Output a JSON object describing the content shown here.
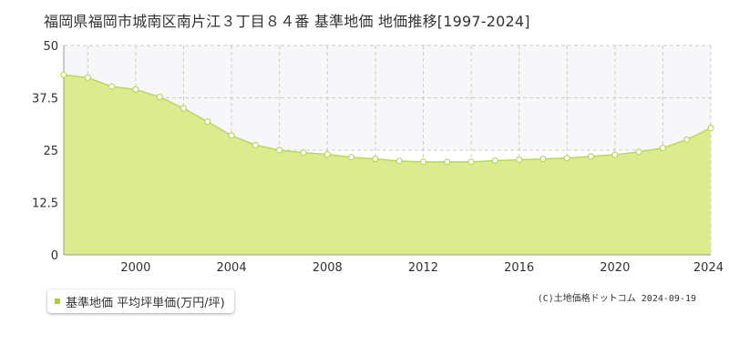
{
  "header": {
    "title": "福岡県福岡市城南区南片江３丁目８４番 基準地価 地価推移[1997-2024]"
  },
  "legend": {
    "label": "基準地価 平均坪単価(万円/坪)"
  },
  "footer": {
    "copyright": "(C)土地価格ドットコム 2024-09-19"
  },
  "colors": {
    "area_fill": "#dbeb8e",
    "line": "#b8d85a",
    "upper_band": "#f7f7f9",
    "marker_fill": "#ffffff",
    "grid": "#cccccc",
    "axis": "#999999",
    "legend_swatch": "#a8cf3a"
  },
  "chart_data": {
    "type": "area",
    "title": "福岡県福岡市城南区南片江３丁目８４番 基準地価 地価推移[1997-2024]",
    "xlabel": "",
    "ylabel": "",
    "xlim": [
      1997,
      2024
    ],
    "ylim": [
      0,
      50
    ],
    "yticks": [
      "0",
      "12.5",
      "25",
      "37.5",
      "50"
    ],
    "xticks": [
      "2000",
      "2004",
      "2008",
      "2012",
      "2016",
      "2020",
      "2024"
    ],
    "grid": true,
    "legend_position": "bottom-left",
    "series": [
      {
        "name": "基準地価 平均坪単価(万円/坪)",
        "x": [
          1997,
          1998,
          1999,
          2000,
          2001,
          2002,
          2003,
          2004,
          2005,
          2006,
          2007,
          2008,
          2009,
          2010,
          2011,
          2012,
          2013,
          2014,
          2015,
          2016,
          2017,
          2018,
          2019,
          2020,
          2021,
          2022,
          2023,
          2024
        ],
        "values": [
          43.0,
          42.3,
          40.2,
          39.5,
          37.7,
          35.0,
          31.8,
          28.5,
          26.2,
          25.0,
          24.4,
          24.0,
          23.3,
          22.9,
          22.4,
          22.2,
          22.2,
          22.2,
          22.5,
          22.7,
          22.9,
          23.1,
          23.5,
          23.9,
          24.6,
          25.5,
          27.5,
          30.3
        ]
      }
    ]
  }
}
